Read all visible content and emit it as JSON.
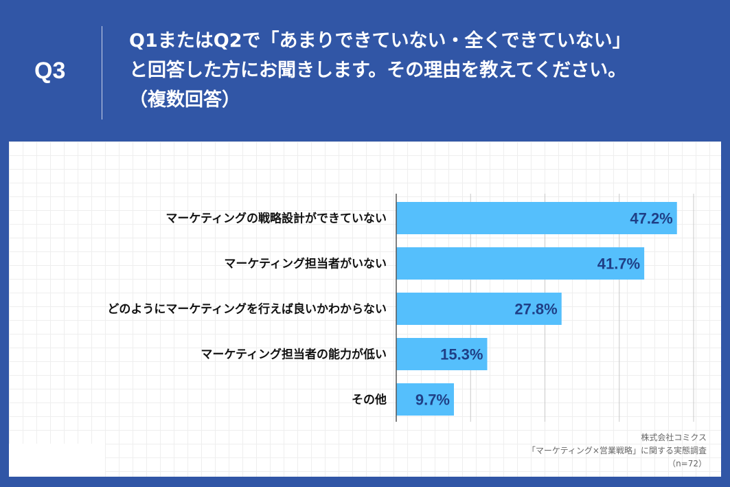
{
  "question": {
    "label": "Q3",
    "lines": [
      "Q1またはQ2で「あまりできていない・全くできていない」",
      "と回答した方にお聞きします。その理由を教えてください。",
      "（複数回答）"
    ]
  },
  "chart_data": {
    "type": "bar",
    "orientation": "horizontal",
    "categories": [
      "マーケティングの戦略設計ができていない",
      "マーケティング担当者がいない",
      "どのようにマーケティングを行えば良いかわからない",
      "マーケティング担当者の能力が低い",
      "その他"
    ],
    "values": [
      47.2,
      41.7,
      27.8,
      15.3,
      9.7
    ],
    "value_labels": [
      "47.2%",
      "41.7%",
      "27.8%",
      "15.3%",
      "9.7%"
    ],
    "xlim": [
      0,
      50
    ],
    "grid": true,
    "bar_color": "#55bffc",
    "label_color": "#1f3f86"
  },
  "source": {
    "company": "株式会社コミクス",
    "survey": "「マーケティング×営業戦略」に関する実態調査",
    "n": "（n=72）"
  }
}
